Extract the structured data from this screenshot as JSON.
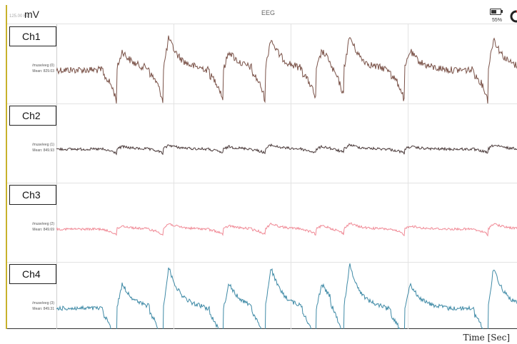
{
  "topbar": {
    "sample_rate": "125.00 Hz",
    "unit": "mV",
    "title": "EEG",
    "battery_percent": "55%",
    "battery_level": 0.55,
    "battery_icon": "battery-icon",
    "gauge_icon": "gauge-icon"
  },
  "x_axis_label": "Time [Sec]",
  "channels": [
    {
      "label": "Ch1",
      "source": "/muse/eeg (0)",
      "mean": "Mean: 829.03",
      "color": "#7a5248"
    },
    {
      "label": "Ch2",
      "source": "/muse/eeg (1)",
      "mean": "Mean: 849.93",
      "color": "#4a3a3a"
    },
    {
      "label": "Ch3",
      "source": "/muse/eeg (2)",
      "mean": "Mean: 849.69",
      "color": "#f08a96"
    },
    {
      "label": "Ch4",
      "source": "/muse/eeg (3)",
      "mean": "Mean: 849.31",
      "color": "#3f8aa6"
    }
  ]
}
